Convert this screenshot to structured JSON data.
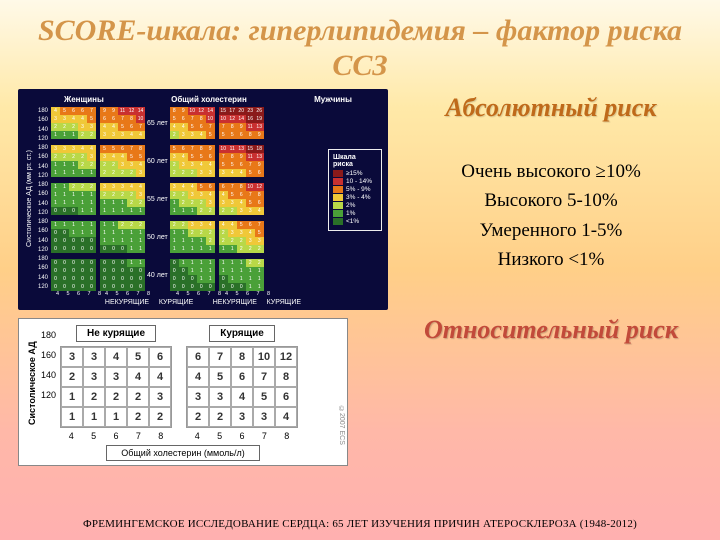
{
  "title": "SCORE-шкала: гиперлипидемия – фактор риска ССЗ",
  "absolute_risk_title": "Абсолютный риск",
  "risk_levels": [
    "Очень высокого ≥10%",
    "Высокого 5-10%",
    "Умеренного 1-5%",
    "Низкого <1%"
  ],
  "relative_risk_title": "Относительный риск",
  "footer": "ФРЕМИНГЕМСКОЕ ИССЛЕДОВАНИЕ СЕРДЦА: 65 ЛЕТ ИЗУЧЕНИЯ ПРИЧИН АТЕРОСКЛЕРОЗА (1948-2012)",
  "score_chart": {
    "type": "heatmap",
    "background_color": "#0a0a3a",
    "sex_headers": [
      "Женщины",
      "Общий холестерин",
      "Мужчины"
    ],
    "smoking_labels": [
      "НЕКУРЯЩИЕ",
      "КУРЯЩИЕ"
    ],
    "y_axis_label": "Систолическое АД (мм рт. ст.)",
    "y_ticks": [
      "180",
      "160",
      "140",
      "120"
    ],
    "x_ticks": [
      "4",
      "5",
      "6",
      "7",
      "8"
    ],
    "ages": [
      "65",
      "60",
      "55",
      "50",
      "40"
    ],
    "age_suffix": "лет",
    "legend_title": "Шкала риска",
    "legend": [
      {
        "color": "#8b1a1a",
        "label": "≥15%"
      },
      {
        "color": "#c93030",
        "label": "10 - 14%"
      },
      {
        "color": "#e87818",
        "label": "5% - 9%"
      },
      {
        "color": "#f0c838",
        "label": "3% - 4%"
      },
      {
        "color": "#b8d848",
        "label": "2%"
      },
      {
        "color": "#4aa038",
        "label": "1%"
      },
      {
        "color": "#2a7028",
        "label": "<1%"
      }
    ],
    "colors": {
      "darkred": "#8b1a1a",
      "red": "#c93030",
      "orange": "#e87818",
      "yellow": "#f0c838",
      "lime": "#b8d848",
      "green": "#4aa038",
      "darkgreen": "#2a7028"
    },
    "women_nonsmoke": [
      [
        [
          4,
          5,
          6,
          6,
          7
        ],
        [
          3,
          3,
          4,
          4,
          5
        ],
        [
          2,
          2,
          2,
          3,
          3
        ],
        [
          1,
          1,
          1,
          2,
          2
        ]
      ],
      [
        [
          3,
          3,
          3,
          4,
          4
        ],
        [
          2,
          2,
          2,
          2,
          3
        ],
        [
          1,
          1,
          1,
          2,
          2
        ],
        [
          1,
          1,
          1,
          1,
          1
        ]
      ],
      [
        [
          1,
          1,
          2,
          2,
          2
        ],
        [
          1,
          1,
          1,
          1,
          1
        ],
        [
          1,
          1,
          1,
          1,
          1
        ],
        [
          0,
          0,
          0,
          1,
          1
        ]
      ],
      [
        [
          1,
          1,
          1,
          1,
          1
        ],
        [
          0,
          0,
          1,
          1,
          1
        ],
        [
          0,
          0,
          0,
          0,
          0
        ],
        [
          0,
          0,
          0,
          0,
          0
        ]
      ],
      [
        [
          0,
          0,
          0,
          0,
          0
        ],
        [
          0,
          0,
          0,
          0,
          0
        ],
        [
          0,
          0,
          0,
          0,
          0
        ],
        [
          0,
          0,
          0,
          0,
          0
        ]
      ]
    ],
    "women_smoke": [
      [
        [
          9,
          9,
          11,
          12,
          14
        ],
        [
          6,
          6,
          7,
          8,
          10
        ],
        [
          4,
          4,
          5,
          6,
          7
        ],
        [
          3,
          3,
          3,
          4,
          4
        ]
      ],
      [
        [
          5,
          5,
          6,
          7,
          8
        ],
        [
          3,
          4,
          4,
          5,
          5
        ],
        [
          2,
          2,
          3,
          3,
          4
        ],
        [
          2,
          2,
          2,
          2,
          3
        ]
      ],
      [
        [
          3,
          3,
          3,
          4,
          4
        ],
        [
          2,
          2,
          2,
          2,
          3
        ],
        [
          1,
          1,
          1,
          2,
          2
        ],
        [
          1,
          1,
          1,
          1,
          1
        ]
      ],
      [
        [
          1,
          1,
          2,
          2,
          2
        ],
        [
          1,
          1,
          1,
          1,
          1
        ],
        [
          1,
          1,
          1,
          1,
          1
        ],
        [
          0,
          0,
          0,
          1,
          1
        ]
      ],
      [
        [
          0,
          0,
          0,
          1,
          1
        ],
        [
          0,
          0,
          0,
          0,
          0
        ],
        [
          0,
          0,
          0,
          0,
          0
        ],
        [
          0,
          0,
          0,
          0,
          0
        ]
      ]
    ],
    "men_nonsmoke": [
      [
        [
          8,
          9,
          10,
          12,
          14
        ],
        [
          5,
          6,
          7,
          8,
          10
        ],
        [
          4,
          4,
          5,
          6,
          7
        ],
        [
          2,
          3,
          3,
          4,
          5
        ]
      ],
      [
        [
          5,
          6,
          7,
          8,
          9
        ],
        [
          3,
          4,
          5,
          5,
          6
        ],
        [
          2,
          3,
          3,
          4,
          4
        ],
        [
          2,
          2,
          2,
          3,
          3
        ]
      ],
      [
        [
          3,
          4,
          4,
          5,
          6
        ],
        [
          2,
          2,
          3,
          3,
          4
        ],
        [
          1,
          2,
          2,
          2,
          3
        ],
        [
          1,
          1,
          1,
          2,
          2
        ]
      ],
      [
        [
          2,
          2,
          3,
          3,
          4
        ],
        [
          1,
          1,
          2,
          2,
          2
        ],
        [
          1,
          1,
          1,
          1,
          2
        ],
        [
          1,
          1,
          1,
          1,
          1
        ]
      ],
      [
        [
          0,
          1,
          1,
          1,
          1
        ],
        [
          0,
          0,
          1,
          1,
          1
        ],
        [
          0,
          0,
          0,
          1,
          1
        ],
        [
          0,
          0,
          0,
          0,
          0
        ]
      ]
    ],
    "men_smoke": [
      [
        [
          15,
          17,
          20,
          23,
          26
        ],
        [
          10,
          12,
          14,
          16,
          19
        ],
        [
          7,
          8,
          9,
          11,
          13
        ],
        [
          5,
          5,
          6,
          8,
          9
        ]
      ],
      [
        [
          10,
          11,
          13,
          15,
          18
        ],
        [
          7,
          8,
          9,
          11,
          13
        ],
        [
          5,
          5,
          6,
          7,
          9
        ],
        [
          3,
          4,
          4,
          5,
          6
        ]
      ],
      [
        [
          6,
          7,
          8,
          10,
          12
        ],
        [
          4,
          5,
          6,
          7,
          8
        ],
        [
          3,
          3,
          4,
          5,
          6
        ],
        [
          2,
          2,
          3,
          3,
          4
        ]
      ],
      [
        [
          4,
          4,
          5,
          6,
          7
        ],
        [
          2,
          3,
          3,
          4,
          5
        ],
        [
          2,
          2,
          2,
          3,
          3
        ],
        [
          1,
          1,
          2,
          2,
          2
        ]
      ],
      [
        [
          1,
          1,
          1,
          2,
          2
        ],
        [
          1,
          1,
          1,
          1,
          1
        ],
        [
          0,
          1,
          1,
          1,
          1
        ],
        [
          0,
          0,
          0,
          1,
          1
        ]
      ]
    ]
  },
  "relative_chart": {
    "type": "heatmap",
    "headers": [
      "Не курящие",
      "Курящие"
    ],
    "y_axis_label": "Систолическое АД",
    "y_ticks": [
      "180",
      "160",
      "140",
      "120"
    ],
    "x_ticks": [
      "4",
      "5",
      "6",
      "7",
      "8"
    ],
    "x_axis_label": "Общий холестерин (ммоль/л)",
    "copyright": "©2007 ECS",
    "nonsmoke": [
      [
        3,
        3,
        4,
        5,
        6
      ],
      [
        2,
        3,
        3,
        4,
        4
      ],
      [
        1,
        2,
        2,
        2,
        3
      ],
      [
        1,
        1,
        1,
        2,
        2
      ]
    ],
    "smoke": [
      [
        6,
        7,
        8,
        10,
        12
      ],
      [
        4,
        5,
        6,
        7,
        8
      ],
      [
        3,
        3,
        4,
        5,
        6
      ],
      [
        2,
        2,
        3,
        3,
        4
      ]
    ],
    "cell_bg": "#ffffff"
  }
}
